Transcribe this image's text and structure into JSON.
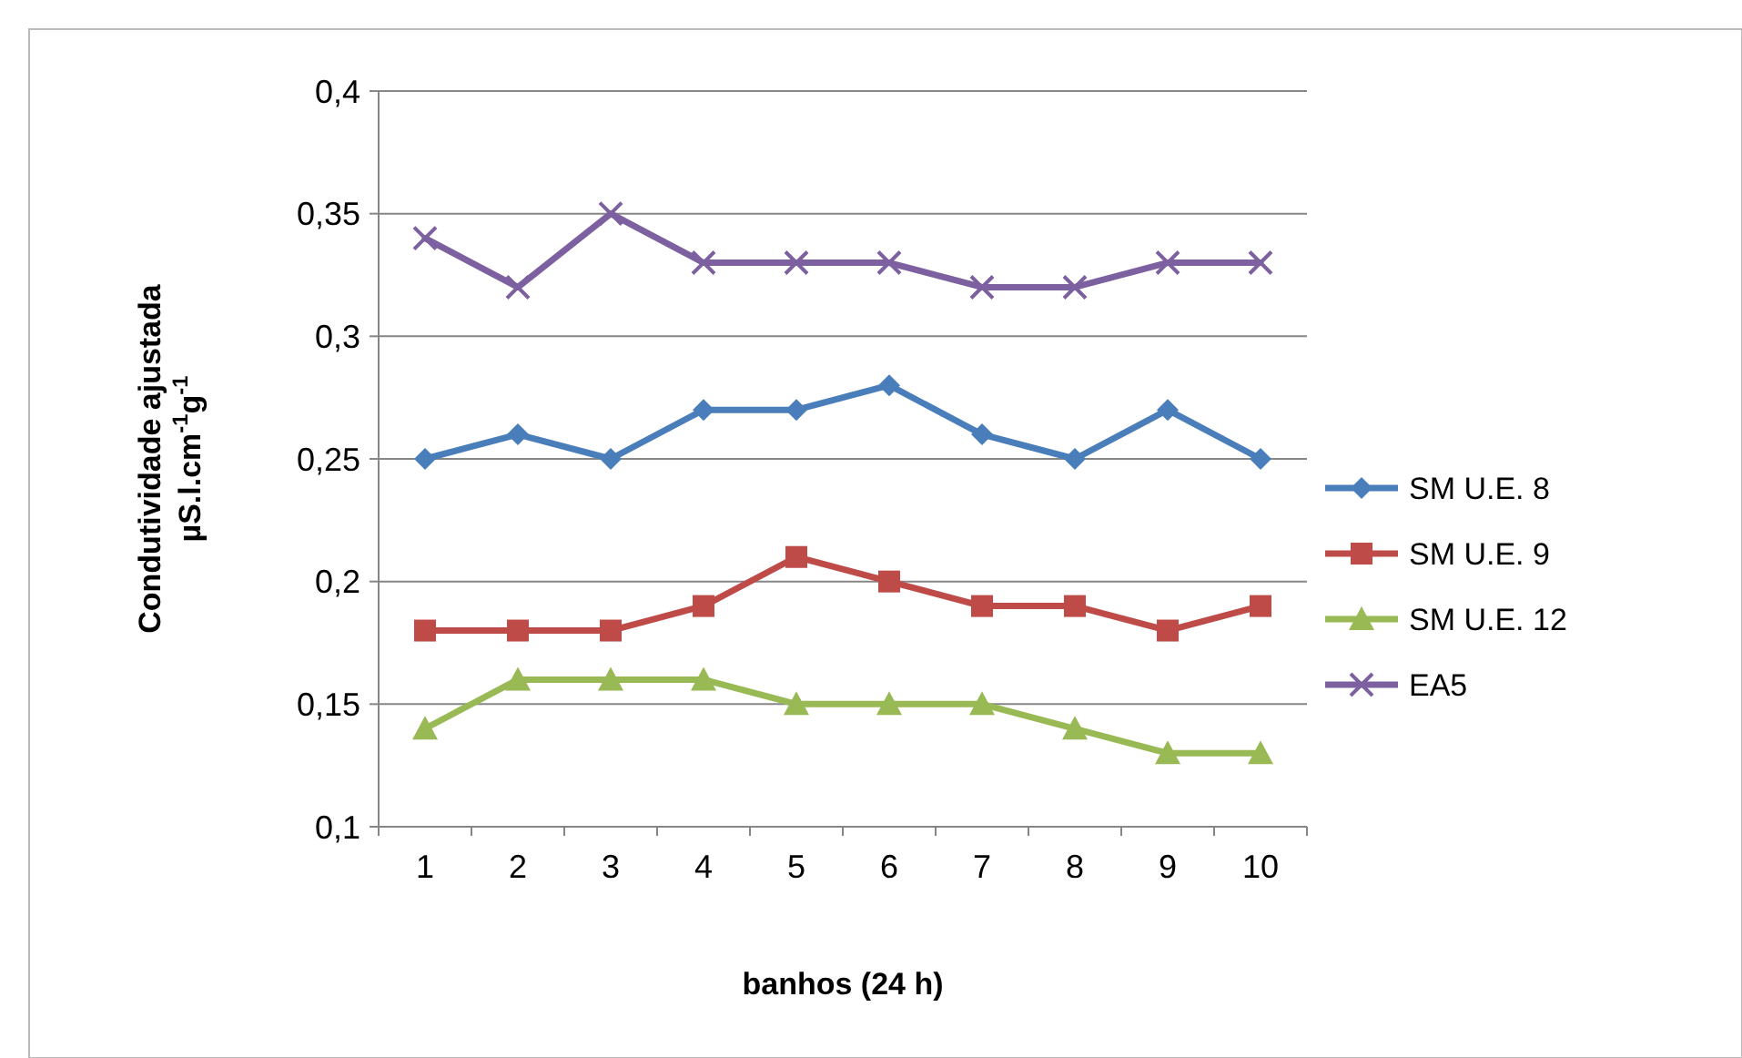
{
  "chart_data": {
    "type": "line",
    "xlabel": "banhos (24 h)",
    "ylabel": "Condutividade ajustada\nµS.l.cm$^{-1}$g$^{-1}$",
    "categories": [
      "1",
      "2",
      "3",
      "4",
      "5",
      "6",
      "7",
      "8",
      "9",
      "10"
    ],
    "ylim": [
      0.1,
      0.4
    ],
    "yticks": [
      {
        "value": 0.1,
        "label": "0,1"
      },
      {
        "value": 0.15,
        "label": "0,15"
      },
      {
        "value": 0.2,
        "label": "0,2"
      },
      {
        "value": 0.25,
        "label": "0,25"
      },
      {
        "value": 0.3,
        "label": "0,3"
      },
      {
        "value": 0.35,
        "label": "0,35"
      },
      {
        "value": 0.4,
        "label": "0,4"
      }
    ],
    "grid": "y",
    "legend": "right",
    "series": [
      {
        "name": "SM U.E. 8",
        "color": "#4a7ebb",
        "marker": "diamond",
        "values": [
          0.25,
          0.26,
          0.25,
          0.27,
          0.27,
          0.28,
          0.26,
          0.25,
          0.27,
          0.25
        ]
      },
      {
        "name": "SM U.E. 9",
        "color": "#be4b48",
        "marker": "square",
        "values": [
          0.18,
          0.18,
          0.18,
          0.19,
          0.21,
          0.2,
          0.19,
          0.19,
          0.18,
          0.19
        ]
      },
      {
        "name": "SM U.E. 12",
        "color": "#98b954",
        "marker": "triangle",
        "values": [
          0.14,
          0.16,
          0.16,
          0.16,
          0.15,
          0.15,
          0.15,
          0.14,
          0.13,
          0.13
        ]
      },
      {
        "name": "EA5",
        "color": "#7d60a0",
        "marker": "cross",
        "values": [
          0.34,
          0.32,
          0.35,
          0.33,
          0.33,
          0.33,
          0.32,
          0.32,
          0.33,
          0.33
        ]
      }
    ]
  }
}
